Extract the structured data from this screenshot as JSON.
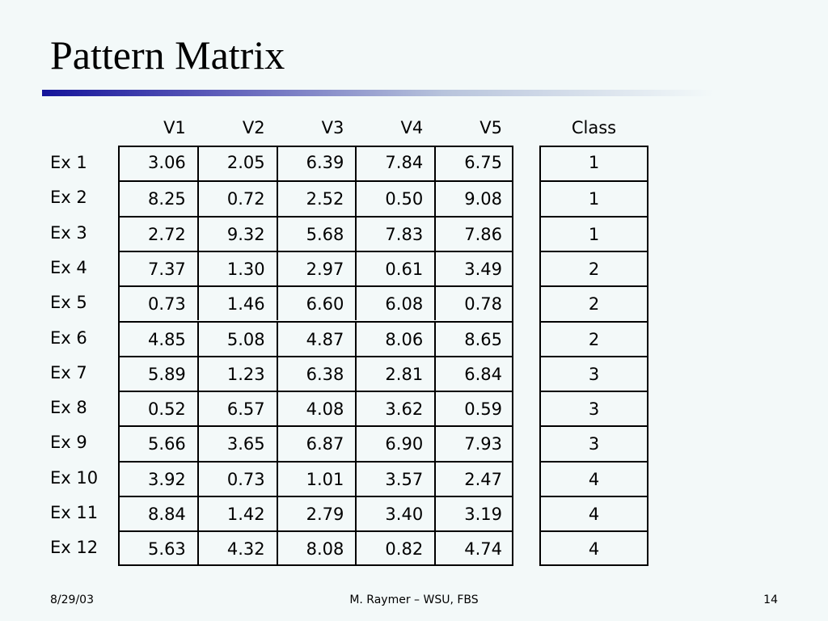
{
  "header": {
    "title": "Pattern Matrix"
  },
  "table": {
    "columns": [
      "V1",
      "V2",
      "V3",
      "V4",
      "V5"
    ],
    "class_header": "Class",
    "rows": [
      {
        "label": "Ex 1",
        "values": [
          "3.06",
          "2.05",
          "6.39",
          "7.84",
          "6.75"
        ],
        "class": 1
      },
      {
        "label": "Ex 2",
        "values": [
          "8.25",
          "0.72",
          "2.52",
          "0.50",
          "9.08"
        ],
        "class": 1
      },
      {
        "label": "Ex 3",
        "values": [
          "2.72",
          "9.32",
          "5.68",
          "7.83",
          "7.86"
        ],
        "class": 1
      },
      {
        "label": "Ex 4",
        "values": [
          "7.37",
          "1.30",
          "2.97",
          "0.61",
          "3.49"
        ],
        "class": 2
      },
      {
        "label": "Ex 5",
        "values": [
          "0.73",
          "1.46",
          "6.60",
          "6.08",
          "0.78"
        ],
        "class": 2
      },
      {
        "label": "Ex 6",
        "values": [
          "4.85",
          "5.08",
          "4.87",
          "8.06",
          "8.65"
        ],
        "class": 2
      },
      {
        "label": "Ex 7",
        "values": [
          "5.89",
          "1.23",
          "6.38",
          "2.81",
          "6.84"
        ],
        "class": 3
      },
      {
        "label": "Ex 8",
        "values": [
          "0.52",
          "6.57",
          "4.08",
          "3.62",
          "0.59"
        ],
        "class": 3
      },
      {
        "label": "Ex 9",
        "values": [
          "5.66",
          "3.65",
          "6.87",
          "6.90",
          "7.93"
        ],
        "class": 3
      },
      {
        "label": "Ex 10",
        "values": [
          "3.92",
          "0.73",
          "1.01",
          "3.57",
          "2.47"
        ],
        "class": 4
      },
      {
        "label": "Ex 11",
        "values": [
          "8.84",
          "1.42",
          "2.79",
          "3.40",
          "3.19"
        ],
        "class": 4
      },
      {
        "label": "Ex 12",
        "values": [
          "5.63",
          "4.32",
          "8.08",
          "0.82",
          "4.74"
        ],
        "class": 4
      }
    ]
  },
  "footer": {
    "date": "8/29/03",
    "author": "M. Raymer – WSU, FBS",
    "page": "14"
  }
}
